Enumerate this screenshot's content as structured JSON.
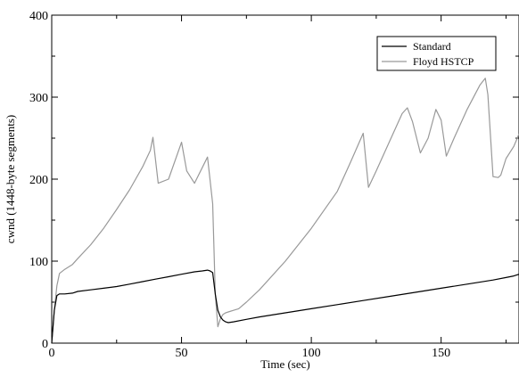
{
  "chart_data": {
    "type": "line",
    "title": "",
    "xlabel": "Time (sec)",
    "ylabel": "cwnd (1448-byte segments)",
    "xlim": [
      0,
      180
    ],
    "ylim": [
      0,
      400
    ],
    "xticks": [
      0,
      50,
      100,
      150
    ],
    "yticks": [
      0,
      100,
      200,
      300,
      400
    ],
    "grid": false,
    "legend_position": "top-right",
    "series": [
      {
        "name": "Standard",
        "color": "#000000",
        "x": [
          0,
          1,
          2,
          3,
          5,
          8,
          10,
          15,
          20,
          25,
          30,
          35,
          40,
          45,
          50,
          55,
          58,
          60,
          61,
          62,
          63,
          64,
          65,
          66,
          67,
          68,
          70,
          75,
          80,
          90,
          100,
          110,
          120,
          130,
          140,
          150,
          160,
          170,
          175,
          178,
          180
        ],
        "y": [
          0,
          40,
          58,
          60,
          60,
          61,
          63,
          65,
          67,
          69,
          72,
          75,
          78,
          81,
          84,
          87,
          88,
          89,
          88,
          86,
          60,
          40,
          32,
          28,
          26,
          25,
          26,
          29,
          32,
          37,
          42,
          47,
          52,
          57,
          62,
          67,
          72,
          77,
          80,
          82,
          84
        ]
      },
      {
        "name": "Floyd HSTCP",
        "color": "#999999",
        "x": [
          0,
          1,
          2,
          3,
          5,
          8,
          10,
          15,
          20,
          25,
          30,
          35,
          38,
          39,
          41,
          45,
          50,
          52,
          55,
          60,
          62,
          63,
          64,
          65,
          66,
          67,
          68,
          70,
          72,
          75,
          80,
          90,
          100,
          110,
          115,
          120,
          122,
          125,
          130,
          135,
          137,
          139,
          142,
          145,
          148,
          150,
          152,
          155,
          160,
          165,
          167,
          168,
          170,
          172,
          173,
          175,
          178,
          180
        ],
        "y": [
          0,
          40,
          70,
          85,
          90,
          96,
          103,
          120,
          140,
          163,
          187,
          215,
          235,
          251,
          195,
          200,
          245,
          210,
          195,
          227,
          170,
          60,
          20,
          30,
          35,
          37,
          38,
          40,
          42,
          50,
          65,
          100,
          140,
          185,
          220,
          256,
          190,
          210,
          245,
          280,
          287,
          270,
          232,
          250,
          285,
          272,
          228,
          250,
          285,
          315,
          323,
          303,
          203,
          202,
          205,
          225,
          240,
          255
        ]
      }
    ]
  }
}
